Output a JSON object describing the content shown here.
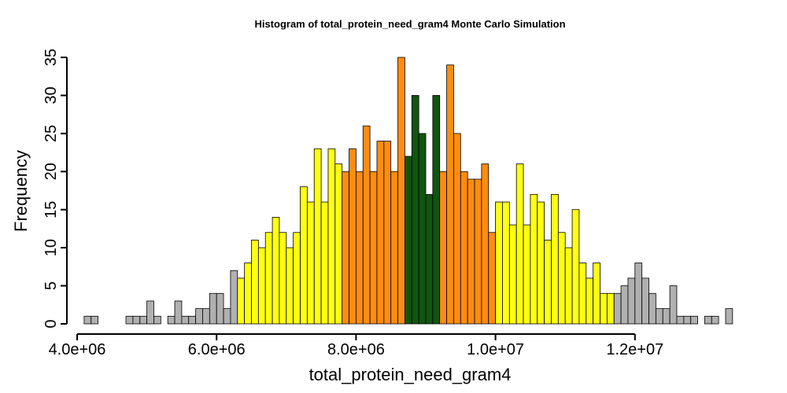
{
  "chart_data": {
    "type": "bar",
    "title": "Histogram of  total_protein_need_gram4  Monte Carlo Simulation",
    "xlabel": "total_protein_need_gram4",
    "ylabel": "Frequency",
    "xlim": [
      4000000,
      13500000
    ],
    "ylim": [
      0,
      35
    ],
    "x_ticks": [
      4000000,
      6000000,
      8000000,
      10000000,
      12000000
    ],
    "x_tick_labels": [
      "4.0e+06",
      "6.0e+06",
      "8.0e+06",
      "1.0e+07",
      "1.2e+07"
    ],
    "y_ticks": [
      0,
      5,
      10,
      15,
      20,
      25,
      30,
      35
    ],
    "y_tick_labels": [
      "0",
      "5",
      "10",
      "15",
      "20",
      "25",
      "30",
      "35"
    ],
    "grid": false,
    "bin_start": 4100000,
    "bin_width": 100000,
    "values": [
      1,
      1,
      0,
      0,
      0,
      0,
      1,
      1,
      1,
      3,
      1,
      0,
      1,
      3,
      1,
      1,
      2,
      2,
      4,
      4,
      2,
      7,
      6,
      8,
      11,
      10,
      12,
      14,
      12,
      10,
      12,
      18,
      16,
      23,
      16,
      23,
      21,
      20,
      23,
      20,
      26,
      20,
      24,
      24,
      20,
      35,
      22,
      30,
      25,
      17,
      30,
      20,
      34,
      25,
      20,
      19,
      19,
      21,
      12,
      16,
      16,
      13,
      21,
      13,
      17,
      16,
      11,
      17,
      12,
      10,
      15,
      8,
      6,
      8,
      4,
      4,
      4,
      5,
      6,
      8,
      6,
      4,
      2,
      2,
      5,
      1,
      1,
      1,
      0,
      1,
      1,
      0,
      2
    ],
    "band_colors": [
      "#b0b0b0",
      "#ffff11",
      "#ff8c11",
      "#115511"
    ],
    "bin_bands": [
      0,
      0,
      0,
      0,
      0,
      0,
      0,
      0,
      0,
      0,
      0,
      0,
      0,
      0,
      0,
      0,
      0,
      0,
      0,
      0,
      0,
      0,
      1,
      1,
      1,
      1,
      1,
      1,
      1,
      1,
      1,
      1,
      1,
      1,
      1,
      1,
      1,
      2,
      2,
      2,
      2,
      2,
      2,
      2,
      2,
      2,
      3,
      3,
      3,
      3,
      3,
      2,
      2,
      2,
      2,
      2,
      2,
      2,
      2,
      1,
      1,
      1,
      1,
      1,
      1,
      1,
      1,
      1,
      1,
      1,
      1,
      1,
      1,
      1,
      1,
      1,
      0,
      0,
      0,
      0,
      0,
      0,
      0,
      0,
      0,
      0,
      0,
      0,
      0,
      0,
      0,
      0,
      0
    ]
  }
}
